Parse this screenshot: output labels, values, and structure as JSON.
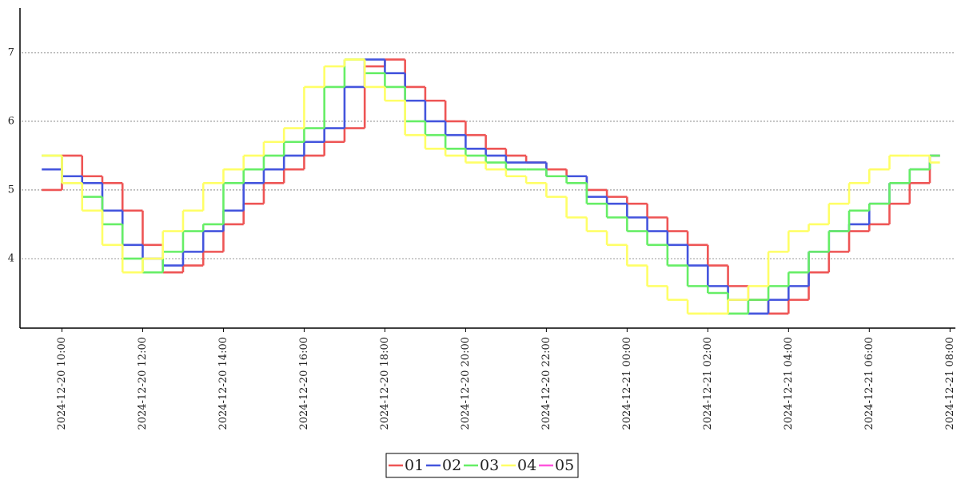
{
  "chart_data": {
    "type": "step",
    "x": [
      "2024-12-20 09:30",
      "2024-12-20 10:00",
      "2024-12-20 10:30",
      "2024-12-20 11:00",
      "2024-12-20 11:30",
      "2024-12-20 12:00",
      "2024-12-20 12:30",
      "2024-12-20 13:00",
      "2024-12-20 13:30",
      "2024-12-20 14:00",
      "2024-12-20 14:30",
      "2024-12-20 15:00",
      "2024-12-20 15:30",
      "2024-12-20 16:00",
      "2024-12-20 16:30",
      "2024-12-20 17:00",
      "2024-12-20 17:30",
      "2024-12-20 18:00",
      "2024-12-20 18:30",
      "2024-12-20 19:00",
      "2024-12-20 19:30",
      "2024-12-20 20:00",
      "2024-12-20 20:30",
      "2024-12-20 21:00",
      "2024-12-20 21:30",
      "2024-12-20 22:00",
      "2024-12-20 22:30",
      "2024-12-20 23:00",
      "2024-12-20 23:30",
      "2024-12-21 00:00",
      "2024-12-21 00:30",
      "2024-12-21 01:00",
      "2024-12-21 01:30",
      "2024-12-21 02:00",
      "2024-12-21 02:30",
      "2024-12-21 03:00",
      "2024-12-21 03:30",
      "2024-12-21 04:00",
      "2024-12-21 04:30",
      "2024-12-21 05:00",
      "2024-12-21 05:30",
      "2024-12-21 06:00",
      "2024-12-21 06:30",
      "2024-12-21 07:00",
      "2024-12-21 07:30"
    ],
    "series": [
      {
        "name": "01",
        "color": "#ee5555",
        "values": [
          5.0,
          5.5,
          5.2,
          5.1,
          4.7,
          4.2,
          3.8,
          3.9,
          4.1,
          4.5,
          4.8,
          5.1,
          5.3,
          5.5,
          5.7,
          5.9,
          6.8,
          6.9,
          6.5,
          6.3,
          6.0,
          5.8,
          5.6,
          5.5,
          5.4,
          5.3,
          5.2,
          5.0,
          4.9,
          4.8,
          4.6,
          4.4,
          4.2,
          3.9,
          3.6,
          3.4,
          3.2,
          3.4,
          3.8,
          4.1,
          4.4,
          4.5,
          4.8,
          5.1,
          5.5
        ]
      },
      {
        "name": "02",
        "color": "#4455dd",
        "values": [
          5.3,
          5.2,
          5.1,
          4.7,
          4.2,
          4.0,
          3.9,
          4.1,
          4.4,
          4.7,
          5.1,
          5.3,
          5.5,
          5.7,
          5.9,
          6.5,
          6.9,
          6.7,
          6.3,
          6.0,
          5.8,
          5.6,
          5.5,
          5.4,
          5.4,
          5.2,
          5.2,
          4.9,
          4.8,
          4.6,
          4.4,
          4.2,
          3.9,
          3.6,
          3.4,
          3.2,
          3.4,
          3.6,
          4.1,
          4.4,
          4.5,
          4.8,
          5.1,
          5.3,
          5.5
        ]
      },
      {
        "name": "03",
        "color": "#66ee66",
        "values": [
          5.5,
          5.1,
          4.9,
          4.5,
          4.0,
          3.8,
          4.1,
          4.4,
          4.5,
          5.1,
          5.3,
          5.5,
          5.7,
          5.9,
          6.5,
          6.9,
          6.7,
          6.5,
          6.0,
          5.8,
          5.6,
          5.5,
          5.4,
          5.3,
          5.3,
          5.2,
          5.1,
          4.8,
          4.6,
          4.4,
          4.2,
          3.9,
          3.6,
          3.5,
          3.2,
          3.4,
          3.6,
          3.8,
          4.1,
          4.4,
          4.7,
          4.8,
          5.1,
          5.3,
          5.5
        ]
      },
      {
        "name": "04",
        "color": "#ffff66",
        "values": [
          5.5,
          5.1,
          4.7,
          4.2,
          3.8,
          4.0,
          4.4,
          4.7,
          5.1,
          5.3,
          5.5,
          5.7,
          5.9,
          6.5,
          6.8,
          6.9,
          6.5,
          6.3,
          5.8,
          5.6,
          5.5,
          5.4,
          5.3,
          5.2,
          5.1,
          4.9,
          4.6,
          4.4,
          4.2,
          3.9,
          3.6,
          3.4,
          3.2,
          3.2,
          3.4,
          3.6,
          4.1,
          4.4,
          4.5,
          4.8,
          5.1,
          5.3,
          5.5,
          5.5,
          5.4
        ]
      },
      {
        "name": "05",
        "color": "#ff55dd",
        "values": [
          null,
          null,
          null,
          null,
          null,
          null,
          null,
          null,
          null,
          null,
          null,
          null,
          null,
          null,
          null,
          null,
          null,
          null,
          null,
          null,
          null,
          null,
          null,
          null,
          null,
          null,
          null,
          null,
          null,
          null,
          null,
          null,
          null,
          null,
          null,
          null,
          null,
          null,
          null,
          null,
          null,
          null,
          null,
          null,
          null
        ]
      }
    ],
    "xlim": [
      "2024-12-20 09:00",
      "2024-12-21 08:08"
    ],
    "xticks": [
      "2024-12-20 10:00",
      "2024-12-20 12:00",
      "2024-12-20 14:00",
      "2024-12-20 16:00",
      "2024-12-20 18:00",
      "2024-12-20 20:00",
      "2024-12-20 22:00",
      "2024-12-21 00:00",
      "2024-12-21 02:00",
      "2024-12-21 04:00",
      "2024-12-21 06:00",
      "2024-12-21 08:00"
    ],
    "ylim": [
      3.0,
      7.65
    ],
    "yticks": [
      4,
      5,
      6,
      7
    ],
    "grid": true,
    "legend": "bottom"
  }
}
